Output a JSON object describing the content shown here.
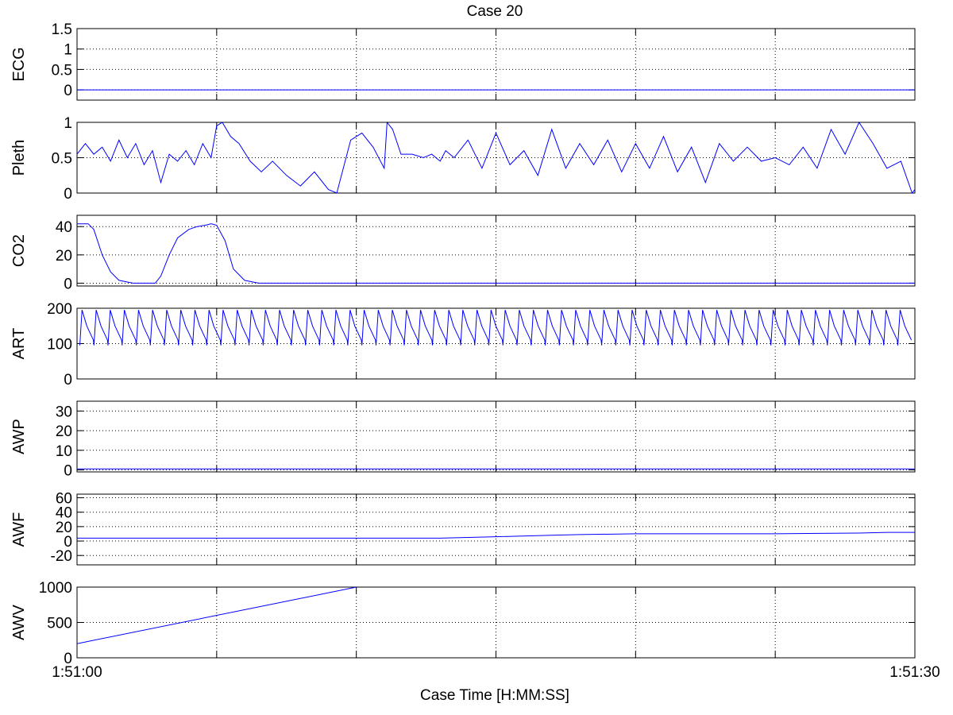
{
  "title": "Case 20",
  "xlabel": "Case Time [H:MM:SS]",
  "x_tick_labels": [
    "1:51:00",
    "1:51:30"
  ],
  "colors": {
    "trace": "#0000ff",
    "axes": "#000000",
    "grid": "#000000"
  },
  "chart_data": [
    {
      "type": "line",
      "ylabel": "ECG",
      "ylim": [
        -0.25,
        1.5
      ],
      "yticks": [
        0,
        0.5,
        1,
        1.5
      ],
      "ytick_labels": [
        "0",
        "0.5",
        "1",
        "1.5"
      ],
      "series": [
        {
          "x": [
            0,
            30
          ],
          "y": [
            0,
            0
          ]
        }
      ]
    },
    {
      "type": "line",
      "ylabel": "Pleth",
      "ylim": [
        0,
        1
      ],
      "yticks": [
        0,
        0.5,
        1
      ],
      "ytick_labels": [
        "0",
        "0.5",
        "1"
      ],
      "series": [
        {
          "x": [
            0,
            0.3,
            0.6,
            0.9,
            1.2,
            1.5,
            1.8,
            2.1,
            2.4,
            2.7,
            3.0,
            3.3,
            3.6,
            3.9,
            4.2,
            4.5,
            4.8,
            5.0,
            5.2,
            5.5,
            5.8,
            6.2,
            6.6,
            7.0,
            7.5,
            8.0,
            8.5,
            9.0,
            9.3,
            9.5,
            9.8,
            10.2,
            10.6,
            11.0,
            11.1,
            11.3,
            11.6,
            12.0,
            12.4,
            12.7,
            13.0,
            13.2,
            13.5,
            14.0,
            14.5,
            15.0,
            15.5,
            16.0,
            16.5,
            17.0,
            17.5,
            18.0,
            18.5,
            19.0,
            19.5,
            20.0,
            20.5,
            21.0,
            21.5,
            22.0,
            22.5,
            23.0,
            23.5,
            24.0,
            24.5,
            25.0,
            25.5,
            26.0,
            26.5,
            27.0,
            27.5,
            28.0,
            28.5,
            29.0,
            29.5,
            29.9,
            30.0
          ],
          "y": [
            0.55,
            0.7,
            0.55,
            0.65,
            0.45,
            0.75,
            0.5,
            0.7,
            0.4,
            0.6,
            0.15,
            0.55,
            0.45,
            0.6,
            0.4,
            0.7,
            0.5,
            0.95,
            1.0,
            0.8,
            0.7,
            0.45,
            0.3,
            0.45,
            0.25,
            0.1,
            0.3,
            0.05,
            0.0,
            0.3,
            0.75,
            0.85,
            0.65,
            0.35,
            1.0,
            0.9,
            0.55,
            0.55,
            0.5,
            0.55,
            0.45,
            0.6,
            0.5,
            0.75,
            0.35,
            0.85,
            0.4,
            0.6,
            0.25,
            0.9,
            0.35,
            0.7,
            0.4,
            0.75,
            0.3,
            0.7,
            0.35,
            0.8,
            0.3,
            0.65,
            0.15,
            0.7,
            0.45,
            0.65,
            0.45,
            0.5,
            0.4,
            0.65,
            0.35,
            0.9,
            0.55,
            1.0,
            0.7,
            0.35,
            0.45,
            0.0,
            0.05
          ]
        }
      ]
    },
    {
      "type": "line",
      "ylabel": "CO2",
      "ylim": [
        -2,
        48
      ],
      "yticks": [
        0,
        20,
        40
      ],
      "ytick_labels": [
        "0",
        "20",
        "40"
      ],
      "series": [
        {
          "x": [
            0,
            0.4,
            0.6,
            0.9,
            1.2,
            1.5,
            2.0,
            2.3,
            2.5,
            2.8,
            3.0,
            3.3,
            3.6,
            4.0,
            4.3,
            4.6,
            4.8,
            5.0,
            5.3,
            5.6,
            6.0,
            6.5,
            30.0
          ],
          "y": [
            42,
            42,
            38,
            20,
            8,
            2,
            0,
            0,
            0,
            0,
            5,
            20,
            32,
            38,
            40,
            41,
            42,
            41,
            30,
            10,
            2,
            0,
            0
          ]
        }
      ]
    },
    {
      "type": "line",
      "ylabel": "ART",
      "ylim": [
        0,
        200
      ],
      "yticks": [
        0,
        100,
        200
      ],
      "ytick_labels": [
        "0",
        "100",
        "200"
      ],
      "beats": {
        "start": 0.1,
        "interval": 0.505,
        "count": 59,
        "systolic": 195,
        "diastolic": 95
      }
    },
    {
      "type": "line",
      "ylabel": "AWP",
      "ylim": [
        -1,
        35
      ],
      "yticks": [
        0,
        10,
        20,
        30
      ],
      "ytick_labels": [
        "0",
        "10",
        "20",
        "30"
      ],
      "series": [
        {
          "x": [
            0,
            30
          ],
          "y": [
            0.5,
            0.5
          ]
        }
      ]
    },
    {
      "type": "line",
      "ylabel": "AWF",
      "ylim": [
        -33,
        65
      ],
      "yticks": [
        -20,
        0,
        20,
        40,
        60
      ],
      "ytick_labels": [
        "-20",
        "0",
        "20",
        "40",
        "60"
      ],
      "series": [
        {
          "x": [
            0,
            5,
            10,
            13,
            14,
            15,
            17,
            18,
            20,
            23,
            25,
            28,
            29,
            30
          ],
          "y": [
            4,
            4,
            4,
            4,
            5,
            6,
            8,
            9,
            10,
            10,
            10,
            11,
            12,
            12
          ]
        }
      ]
    },
    {
      "type": "line",
      "ylabel": "AWV",
      "ylim": [
        0,
        1000
      ],
      "yticks": [
        0,
        500,
        1000
      ],
      "ytick_labels": [
        "0",
        "500",
        "1000"
      ],
      "series": [
        {
          "x": [
            0,
            10
          ],
          "y": [
            200,
            1000
          ]
        }
      ]
    }
  ]
}
